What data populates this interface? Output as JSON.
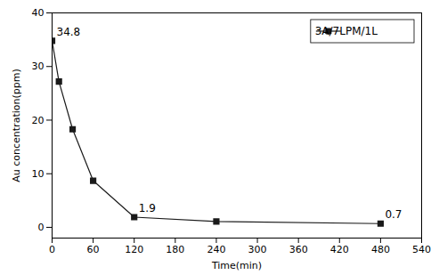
{
  "chart_data": {
    "type": "line",
    "x": [
      0,
      10,
      30,
      60,
      120,
      240,
      480
    ],
    "series": [
      {
        "name": "3A/7LPM/1L",
        "color": "#1a1a1a",
        "marker": "square",
        "line_style": "solid",
        "values": [
          34.8,
          27.2,
          18.3,
          8.7,
          1.9,
          1.1,
          0.7
        ]
      }
    ],
    "annotations": [
      {
        "x": 0,
        "y": 34.8,
        "text": "34.8"
      },
      {
        "x": 120,
        "y": 1.9,
        "text": "1.9"
      },
      {
        "x": 480,
        "y": 0.7,
        "text": "0.7"
      }
    ],
    "xlabel": "Time(min)",
    "ylabel": "Au concentration(ppm)",
    "xlim": [
      0,
      540
    ],
    "ylim": [
      -2,
      40
    ],
    "xticks": [
      0,
      60,
      120,
      180,
      240,
      300,
      360,
      420,
      480,
      540
    ],
    "yticks": [
      0,
      10,
      20,
      30,
      40
    ],
    "grid": false,
    "legend": "upper right"
  }
}
